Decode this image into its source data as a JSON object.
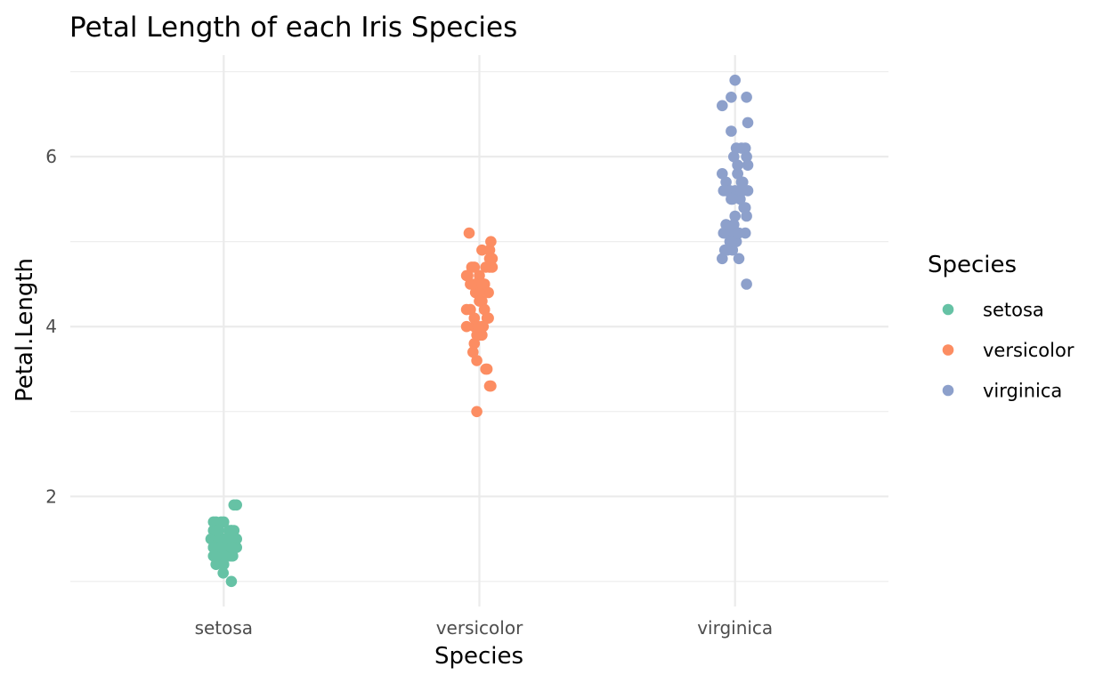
{
  "chart_data": {
    "type": "scatter",
    "subtype": "jitter",
    "title": "Petal Length of each Iris Species",
    "xlabel": "Species",
    "ylabel": "Petal.Length",
    "categories": [
      "setosa",
      "versicolor",
      "virginica"
    ],
    "ylim": [
      0.705,
      7.195
    ],
    "yticks": [
      2,
      4,
      6
    ],
    "yticks_minor": [
      1,
      3,
      5,
      7
    ],
    "ytick_labels": [
      "2",
      "4",
      "6"
    ],
    "grid": true,
    "legend": {
      "title": "Species",
      "position": "right",
      "entries": [
        {
          "label": "setosa",
          "color": "#66c2a5"
        },
        {
          "label": "versicolor",
          "color": "#fc8d62"
        },
        {
          "label": "virginica",
          "color": "#8da0cb"
        }
      ]
    },
    "series": [
      {
        "name": "setosa",
        "color": "#66c2a5",
        "values": [
          1.4,
          1.4,
          1.3,
          1.5,
          1.4,
          1.7,
          1.4,
          1.5,
          1.4,
          1.5,
          1.5,
          1.6,
          1.4,
          1.1,
          1.2,
          1.5,
          1.3,
          1.4,
          1.7,
          1.5,
          1.7,
          1.5,
          1.0,
          1.7,
          1.9,
          1.6,
          1.6,
          1.5,
          1.4,
          1.6,
          1.6,
          1.5,
          1.5,
          1.4,
          1.5,
          1.2,
          1.3,
          1.4,
          1.3,
          1.5,
          1.3,
          1.3,
          1.3,
          1.6,
          1.9,
          1.4,
          1.6,
          1.4,
          1.5,
          1.4
        ],
        "jitter": [
          -0.04,
          0.03,
          -0.02,
          0.01,
          0.05,
          -0.01,
          -0.03,
          0.02,
          0.04,
          -0.05,
          0.03,
          -0.04,
          0.0,
          -0.002,
          -0.03,
          0.04,
          0.03,
          -0.01,
          -0.03,
          -0.02,
          0.0,
          0.05,
          0.03,
          -0.04,
          0.04,
          0.02,
          0.03,
          -0.03,
          0.01,
          -0.03,
          0.04,
          0.0,
          -0.02,
          -0.04,
          0.02,
          0.0,
          -0.04,
          0.01,
          0.02,
          -0.01,
          0.0,
          0.035,
          -0.03,
          0.03,
          0.05,
          0.045,
          -0.02,
          -0.01,
          0.01,
          0.03
        ]
      },
      {
        "name": "versicolor",
        "color": "#fc8d62",
        "values": [
          4.7,
          4.5,
          4.9,
          4.0,
          4.6,
          4.5,
          4.7,
          3.3,
          4.6,
          3.9,
          3.5,
          4.2,
          4.0,
          4.7,
          3.6,
          4.4,
          4.5,
          4.1,
          4.5,
          3.9,
          4.8,
          4.0,
          4.9,
          4.7,
          4.3,
          4.4,
          4.8,
          5.0,
          4.5,
          3.5,
          3.8,
          3.7,
          3.9,
          5.1,
          4.5,
          4.5,
          4.7,
          4.4,
          4.1,
          4.0,
          4.4,
          4.6,
          4.0,
          3.3,
          4.2,
          4.2,
          4.2,
          4.3,
          3.0,
          4.1
        ],
        "jitter": [
          0.04,
          -0.01,
          0.01,
          -0.05,
          -0.05,
          0.02,
          -0.02,
          0.04,
          0.0,
          0.01,
          0.03,
          0.02,
          -0.02,
          0.05,
          -0.01,
          -0.015,
          -0.035,
          0.03,
          0.0,
          0.0,
          0.04,
          0.01,
          0.04,
          -0.03,
          0.01,
          -0.01,
          0.05,
          0.045,
          0.02,
          0.025,
          -0.02,
          -0.025,
          -0.01,
          -0.04,
          -0.02,
          0.01,
          0.025,
          0.035,
          0.035,
          0.015,
          0.0,
          -0.045,
          -0.005,
          0.045,
          -0.05,
          -0.035,
          0.02,
          0.0,
          -0.01,
          -0.02
        ]
      },
      {
        "name": "virginica",
        "color": "#8da0cb",
        "values": [
          6.0,
          5.1,
          5.9,
          5.6,
          5.8,
          6.6,
          4.5,
          6.3,
          5.8,
          6.1,
          5.1,
          5.3,
          5.5,
          5.0,
          5.1,
          5.3,
          5.5,
          6.7,
          6.9,
          5.0,
          5.7,
          4.9,
          6.7,
          4.9,
          5.7,
          6.0,
          4.8,
          4.9,
          5.6,
          5.8,
          6.1,
          6.4,
          5.6,
          5.1,
          5.6,
          6.1,
          5.6,
          5.5,
          4.8,
          5.4,
          5.6,
          5.1,
          5.1,
          5.9,
          5.7,
          5.2,
          5.0,
          5.2,
          5.4,
          5.1
        ],
        "jitter": [
          0.045,
          0.04,
          0.05,
          0.0,
          -0.05,
          -0.05,
          0.045,
          -0.015,
          0.01,
          0.04,
          0.015,
          0.0,
          0.02,
          -0.02,
          -0.04,
          0.045,
          -0.015,
          -0.015,
          0.0,
          0.005,
          0.03,
          -0.04,
          0.045,
          -0.03,
          -0.035,
          -0.005,
          -0.05,
          -0.01,
          -0.045,
          0.01,
          0.005,
          0.05,
          0.03,
          0.005,
          0.05,
          0.025,
          -0.02,
          -0.01,
          0.015,
          0.035,
          -0.035,
          -0.025,
          -0.045,
          0.01,
          0.025,
          -0.035,
          -0.015,
          -0.005,
          0.04,
          0.01
        ]
      }
    ]
  }
}
